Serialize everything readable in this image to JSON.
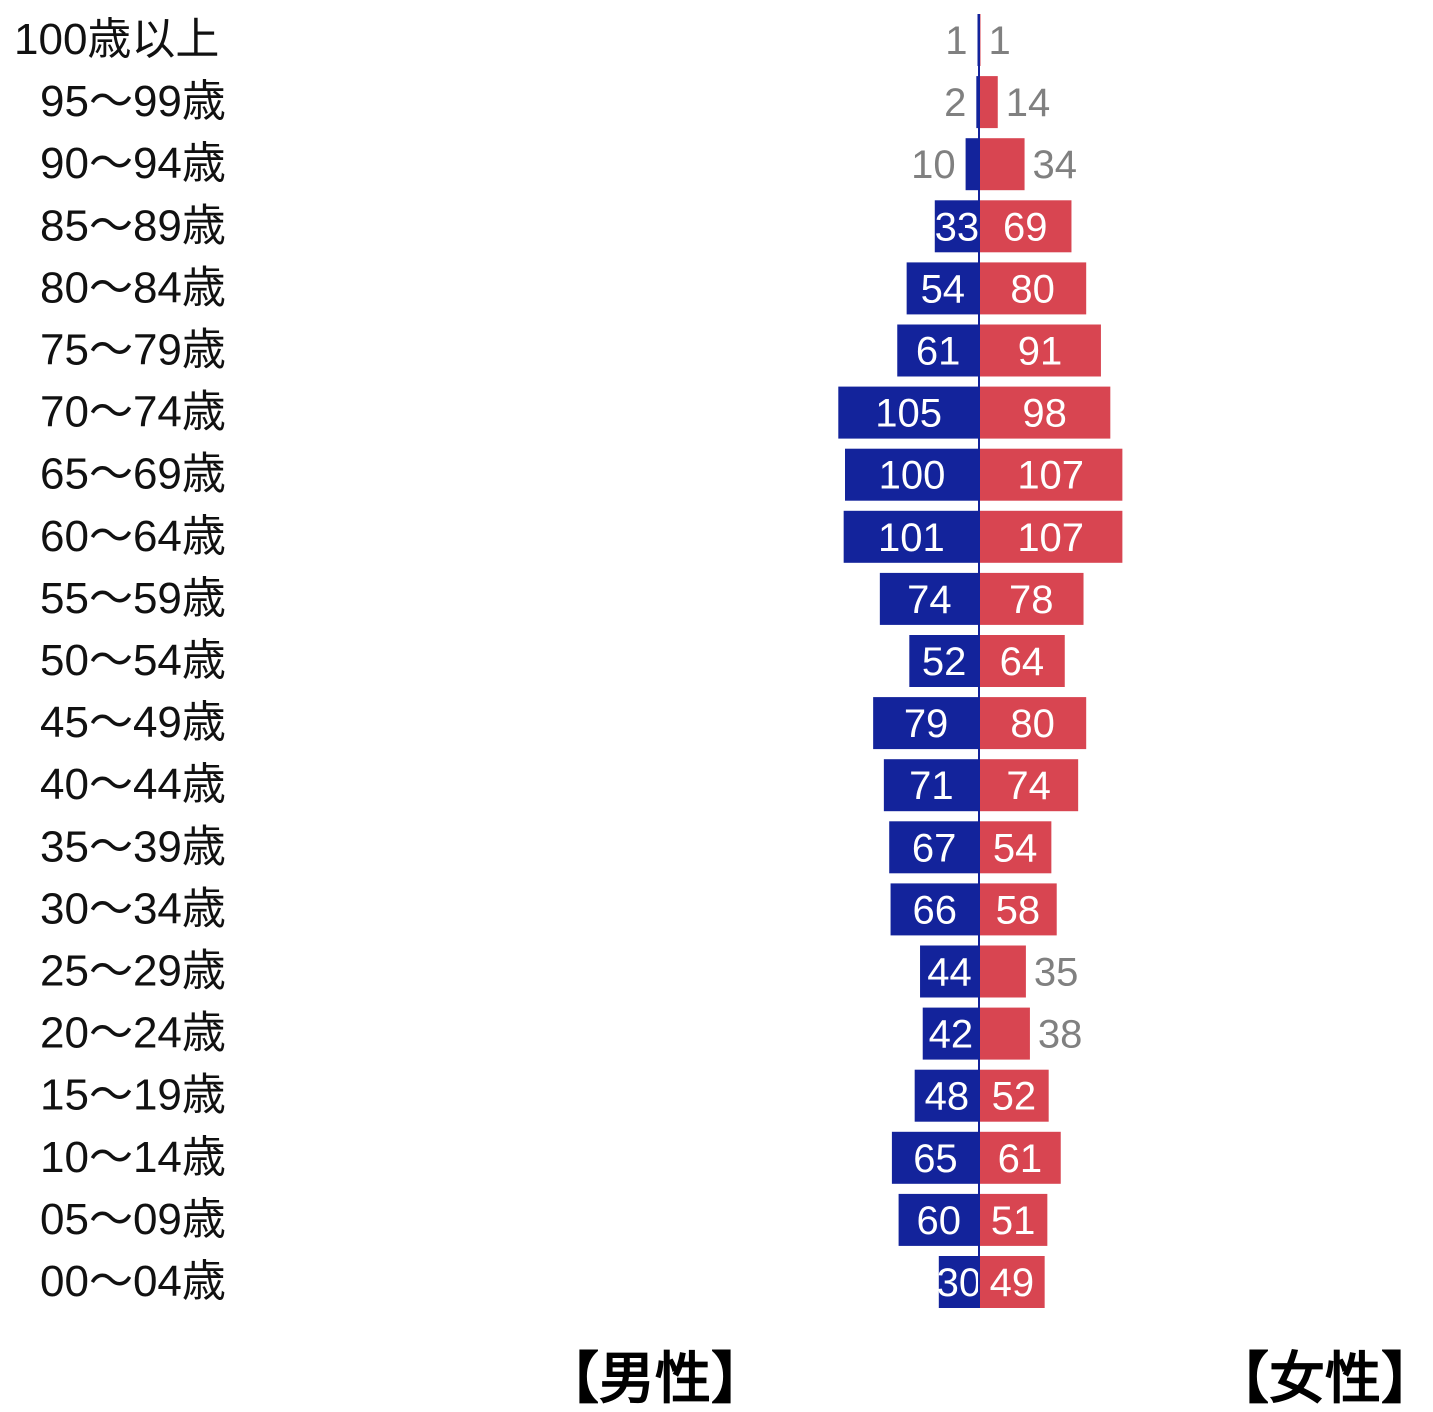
{
  "chart_data": {
    "type": "bar",
    "orientation": "horizontal",
    "subtype": "population-pyramid",
    "categories": [
      "100歳以上",
      "95〜99歳",
      "90〜94歳",
      "85〜89歳",
      "80〜84歳",
      "75〜79歳",
      "70〜74歳",
      "65〜69歳",
      "60〜64歳",
      "55〜59歳",
      "50〜54歳",
      "45〜49歳",
      "40〜44歳",
      "35〜39歳",
      "30〜34歳",
      "25〜29歳",
      "20〜24歳",
      "15〜19歳",
      "10〜14歳",
      "05〜09歳",
      "00〜04歳"
    ],
    "series": [
      {
        "name": "【男性】",
        "side": "left",
        "color": "#13239b",
        "values": [
          1,
          2,
          10,
          33,
          54,
          61,
          105,
          100,
          101,
          74,
          52,
          79,
          71,
          67,
          66,
          44,
          42,
          48,
          65,
          60,
          30
        ]
      },
      {
        "name": "【女性】",
        "side": "right",
        "color": "#d84551",
        "values": [
          1,
          14,
          34,
          69,
          80,
          91,
          98,
          107,
          107,
          78,
          64,
          80,
          74,
          54,
          58,
          35,
          38,
          52,
          61,
          51,
          49
        ]
      }
    ],
    "label_colors": {
      "inside": "#ffffff",
      "outside": "#808080"
    },
    "axis_color": "#13239b",
    "grid": false
  }
}
